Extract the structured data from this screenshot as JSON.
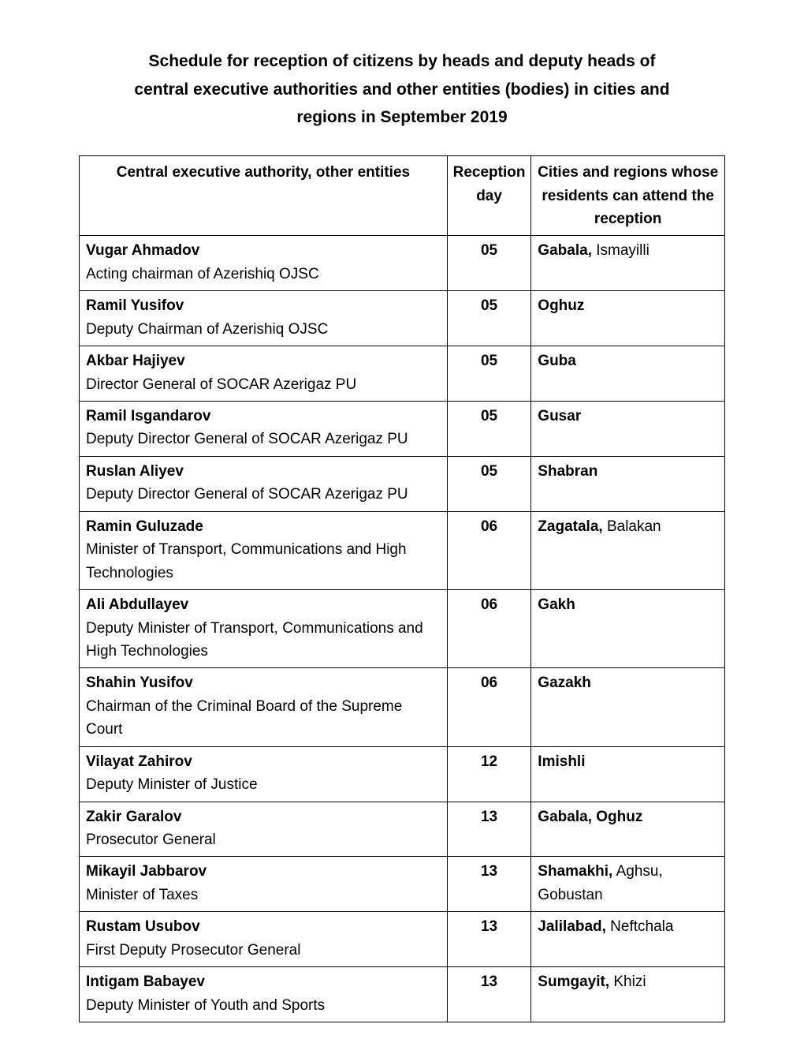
{
  "page": {
    "title": "Schedule for reception of citizens by heads and deputy heads of central executive authorities and other entities (bodies) in cities and regions in September 2019"
  },
  "table": {
    "headers": {
      "authority": "Central executive authority, other entities",
      "day": "Reception day",
      "cities": "Cities and regions whose residents can attend the reception"
    },
    "rows": [
      {
        "name": "Vugar Ahmadov",
        "title": "Acting chairman of Azerishiq OJSC",
        "day": "05",
        "city_bold": "Gabala,",
        "city_rest": " Ismayilli"
      },
      {
        "name": "Ramil Yusifov",
        "title": "Deputy Chairman of Azerishiq OJSC",
        "day": "05",
        "city_bold": "Oghuz",
        "city_rest": ""
      },
      {
        "name": "Akbar Hajiyev",
        "title": "Director General of SOCAR Azerigaz PU",
        "day": "05",
        "city_bold": "Guba",
        "city_rest": ""
      },
      {
        "name": "Ramil Isgandarov",
        "title": "Deputy Director General of SOCAR Azerigaz PU",
        "day": "05",
        "city_bold": "Gusar",
        "city_rest": ""
      },
      {
        "name": "Ruslan Aliyev",
        "title": "Deputy Director General of SOCAR Azerigaz PU",
        "day": "05",
        "city_bold": "Shabran",
        "city_rest": ""
      },
      {
        "name": "Ramin Guluzade",
        "title": "Minister of Transport, Communications and High Technologies",
        "day": "06",
        "city_bold": "Zagatala,",
        "city_rest": " Balakan"
      },
      {
        "name": "Ali Abdullayev",
        "title": "Deputy Minister of Transport, Communications and High Technologies",
        "day": "06",
        "city_bold": "Gakh",
        "city_rest": ""
      },
      {
        "name": "Shahin Yusifov",
        "title": "Chairman of the Criminal Board of the Supreme Court",
        "day": "06",
        "city_bold": "Gazakh",
        "city_rest": ""
      },
      {
        "name": "Vilayat Zahirov",
        "title": "Deputy Minister of Justice",
        "day": "12",
        "city_bold": "Imishli",
        "city_rest": ""
      },
      {
        "name": "Zakir Garalov",
        "title": "Prosecutor General",
        "day": "13",
        "city_bold": "Gabala, Oghuz",
        "city_rest": ""
      },
      {
        "name": "Mikayil Jabbarov",
        "title": "Minister of Taxes",
        "day": "13",
        "city_bold": "Shamakhi,",
        "city_rest": " Aghsu, Gobustan"
      },
      {
        "name": "Rustam Usubov",
        "title": "First Deputy Prosecutor General",
        "day": "13",
        "city_bold": "Jalilabad,",
        "city_rest": " Neftchala"
      },
      {
        "name": "Intigam Babayev",
        "title": "Deputy Minister of Youth and Sports",
        "day": "13",
        "city_bold": "Sumgayit,",
        "city_rest": " Khizi"
      }
    ]
  }
}
